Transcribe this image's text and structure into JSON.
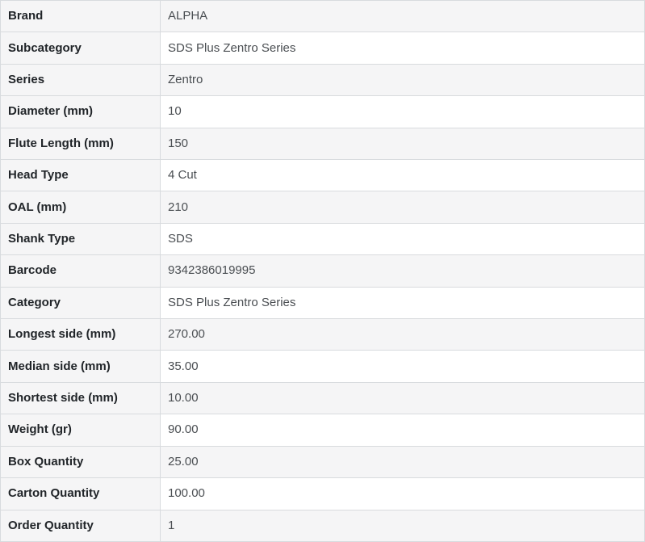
{
  "table": {
    "name": "product-specifications",
    "columns": [
      "attribute",
      "value"
    ],
    "rows": [
      {
        "label": "Brand",
        "value": "ALPHA"
      },
      {
        "label": "Subcategory",
        "value": "SDS Plus Zentro Series"
      },
      {
        "label": "Series",
        "value": "Zentro"
      },
      {
        "label": "Diameter (mm)",
        "value": "10"
      },
      {
        "label": "Flute Length (mm)",
        "value": "150"
      },
      {
        "label": "Head Type",
        "value": "4 Cut"
      },
      {
        "label": "OAL (mm)",
        "value": "210"
      },
      {
        "label": "Shank Type",
        "value": "SDS"
      },
      {
        "label": "Barcode",
        "value": "9342386019995"
      },
      {
        "label": "Category",
        "value": "SDS Plus Zentro Series"
      },
      {
        "label": "Longest side (mm)",
        "value": "270.00"
      },
      {
        "label": "Median side (mm)",
        "value": "35.00"
      },
      {
        "label": "Shortest side (mm)",
        "value": "10.00"
      },
      {
        "label": "Weight (gr)",
        "value": "90.00"
      },
      {
        "label": "Box Quantity",
        "value": "25.00"
      },
      {
        "label": "Carton Quantity",
        "value": "100.00"
      },
      {
        "label": "Order Quantity",
        "value": "1"
      }
    ]
  },
  "colors": {
    "stripe_bg": "#f5f5f6",
    "row_even_bg": "#ffffff",
    "border": "#d8dbde",
    "label_text": "#212529",
    "value_text": "#4a4e52"
  }
}
